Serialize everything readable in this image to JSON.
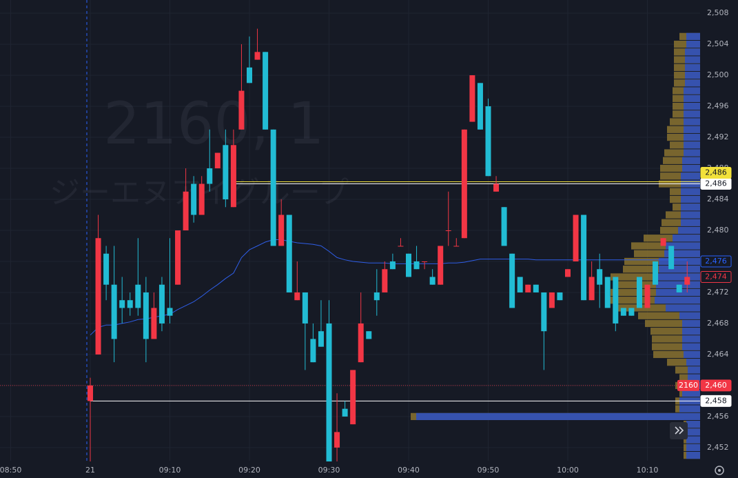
{
  "chart_data": {
    "type": "candlestick",
    "watermark": {
      "title": "2160, 1",
      "subtitle": "ジーエヌアイグループ"
    },
    "x": [
      "09:00",
      "09:01",
      "09:02",
      "09:03",
      "09:04",
      "09:05",
      "09:06",
      "09:07",
      "09:08",
      "09:09",
      "09:10",
      "09:11",
      "09:12",
      "09:13",
      "09:14",
      "09:15",
      "09:16",
      "09:17",
      "09:18",
      "09:19",
      "09:20",
      "09:21",
      "09:22",
      "09:23",
      "09:24",
      "09:25",
      "09:26",
      "09:27",
      "09:28",
      "09:29",
      "09:30",
      "09:31",
      "09:32",
      "09:33",
      "09:34",
      "09:35",
      "09:36",
      "09:37",
      "09:38",
      "09:39",
      "09:40",
      "09:41",
      "09:42",
      "09:43",
      "09:44",
      "09:45",
      "09:46",
      "09:47",
      "09:48",
      "09:49",
      "09:50",
      "09:51",
      "09:52",
      "09:53",
      "09:54",
      "09:55",
      "09:56",
      "09:57",
      "09:58",
      "09:59",
      "10:00",
      "10:01",
      "10:02",
      "10:03",
      "10:04",
      "10:05",
      "10:06",
      "10:07",
      "10:08",
      "10:09",
      "10:10",
      "10:11",
      "10:12",
      "10:13",
      "10:14",
      "10:15"
    ],
    "open": [
      2458,
      2464,
      2477,
      2473,
      2471,
      2471,
      2473,
      2472,
      2466,
      2473,
      2470,
      2473,
      2480,
      2486,
      2482,
      2488,
      2488,
      2491,
      2483,
      2493,
      2501,
      2502,
      2503,
      2493,
      2478,
      2482,
      2471,
      2472,
      2466,
      2467,
      2468,
      2452,
      2457,
      2455,
      2463,
      2467,
      2472,
      2472,
      2476,
      2478,
      2477,
      2476,
      2476,
      2474,
      2473,
      2480,
      2478,
      2479,
      2494,
      2499,
      2496,
      2485,
      2483,
      2477,
      2474,
      2472,
      2473,
      2472,
      2470,
      2472,
      2474,
      2476,
      2482,
      2471,
      2475,
      2474,
      2474,
      2470,
      2470,
      2474,
      2470,
      2476,
      2478,
      2478,
      2473,
      2473
    ],
    "high": [
      2461,
      2482,
      2478,
      2478,
      2474,
      2472,
      2479,
      2474,
      2472,
      2474,
      2479,
      2480,
      2488,
      2487,
      2487,
      2493,
      2490,
      2493,
      2493,
      2504,
      2505,
      2506,
      2503,
      2493,
      2484,
      2482,
      2476,
      2472,
      2468,
      2471,
      2471,
      2459,
      2458,
      2462,
      2472,
      2467,
      2475,
      2476,
      2477,
      2479,
      2477,
      2478,
      2476,
      2475,
      2478,
      2485,
      2479,
      2493,
      2500,
      2499,
      2497,
      2487,
      2483,
      2477,
      2474,
      2473,
      2473,
      2472,
      2472,
      2472,
      2475,
      2482,
      2482,
      2476,
      2477,
      2474,
      2474,
      2470,
      2470,
      2474,
      2473,
      2476,
      2479,
      2478,
      2473,
      2476
    ],
    "low": [
      2450,
      2464,
      2471,
      2463,
      2468,
      2469,
      2469,
      2463,
      2466,
      2467,
      2468,
      2473,
      2480,
      2481,
      2482,
      2485,
      2488,
      2483,
      2483,
      2493,
      2499,
      2502,
      2493,
      2478,
      2478,
      2472,
      2471,
      2462,
      2463,
      2465,
      2450,
      2450,
      2456,
      2455,
      2463,
      2466,
      2469,
      2472,
      2475,
      2478,
      2474,
      2475,
      2475,
      2473,
      2473,
      2478,
      2478,
      2479,
      2494,
      2493,
      2487,
      2485,
      2478,
      2470,
      2472,
      2472,
      2472,
      2462,
      2470,
      2471,
      2474,
      2476,
      2471,
      2471,
      2470,
      2470,
      2467,
      2469,
      2469,
      2470,
      2470,
      2473,
      2478,
      2475,
      2472,
      2472
    ],
    "close": [
      2460,
      2479,
      2473,
      2466,
      2470,
      2470,
      2470,
      2466,
      2470,
      2468,
      2469,
      2480,
      2485,
      2482,
      2486,
      2486,
      2490,
      2484,
      2491,
      2498,
      2499,
      2503,
      2493,
      2478,
      2482,
      2472,
      2472,
      2468,
      2463,
      2465,
      2450,
      2454,
      2456,
      2462,
      2468,
      2466,
      2471,
      2475,
      2475,
      2478,
      2474,
      2475,
      2476,
      2473,
      2478,
      2480,
      2478,
      2493,
      2500,
      2493,
      2487,
      2486,
      2478,
      2470,
      2472,
      2473,
      2472,
      2467,
      2472,
      2471,
      2475,
      2482,
      2471,
      2474,
      2473,
      2470,
      2468,
      2469,
      2469,
      2470,
      2473,
      2473,
      2479,
      2475,
      2472,
      2474
    ],
    "up_color": "#f23645",
    "down_color": "#22bcd4",
    "vwap": {
      "color": "#2f5ee8",
      "values": [
        2466.5,
        2467.5,
        2467.8,
        2467.8,
        2468,
        2468.2,
        2468.5,
        2468.6,
        2468.8,
        2469,
        2469.2,
        2469.8,
        2470.3,
        2470.8,
        2471.5,
        2472.3,
        2473,
        2473.8,
        2474.5,
        2476.5,
        2477.5,
        2478,
        2478.5,
        2478.8,
        2478.8,
        2478.6,
        2478.4,
        2478.3,
        2478.2,
        2478,
        2477.3,
        2476.5,
        2476.2,
        2476,
        2475.9,
        2475.8,
        2475.8,
        2475.8,
        2475.7,
        2475.7,
        2475.7,
        2475.7,
        2475.7,
        2475.7,
        2475.7,
        2475.8,
        2475.8,
        2475.9,
        2476.1,
        2476.3,
        2476.3,
        2476.3,
        2476.3,
        2476.3,
        2476.3,
        2476.3,
        2476.2,
        2476.2,
        2476.2,
        2476.2,
        2476.2,
        2476.2,
        2476.2,
        2476.2,
        2476.2,
        2476.2,
        2476.2,
        2476.2,
        2476.2,
        2476.2,
        2476.2,
        2476.2,
        2476.2,
        2476.2,
        2476.2,
        2476.2
      ]
    },
    "profile": {
      "outer_color": "#8a7330",
      "inner_color": "#2a4fc4",
      "levels": [
        2505,
        2504,
        2503,
        2502,
        2501,
        2500,
        2499,
        2498,
        2497,
        2496,
        2495,
        2494,
        2493,
        2492,
        2491,
        2490,
        2489,
        2488,
        2487,
        2486,
        2485,
        2484,
        2483,
        2482,
        2481,
        2480,
        2479,
        2478,
        2477,
        2476,
        2475,
        2474,
        2473,
        2472,
        2471,
        2470,
        2469,
        2468,
        2467,
        2466,
        2465,
        2464,
        2463,
        2462,
        2461,
        2460,
        2459,
        2458,
        2457,
        2456,
        2455,
        2454,
        2453,
        2452,
        2451
      ],
      "total": [
        30,
        38,
        38,
        38,
        38,
        38,
        38,
        40,
        40,
        40,
        40,
        44,
        48,
        48,
        44,
        52,
        54,
        58,
        58,
        60,
        44,
        44,
        40,
        50,
        56,
        58,
        82,
        100,
        96,
        110,
        112,
        130,
        126,
        130,
        132,
        126,
        90,
        80,
        72,
        70,
        70,
        68,
        48,
        36,
        30,
        36,
        30,
        36,
        36,
        420,
        24,
        24,
        24,
        24,
        24
      ],
      "inner": [
        20,
        20,
        22,
        22,
        22,
        22,
        22,
        24,
        24,
        24,
        24,
        24,
        24,
        24,
        24,
        24,
        26,
        26,
        28,
        28,
        28,
        28,
        28,
        28,
        28,
        32,
        40,
        50,
        52,
        60,
        60,
        66,
        64,
        64,
        66,
        50,
        30,
        26,
        26,
        26,
        26,
        24,
        20,
        18,
        18,
        30,
        26,
        30,
        30,
        412,
        20,
        20,
        20,
        20,
        20
      ]
    },
    "price_lines": [
      {
        "value": 2486,
        "label": "2,486",
        "color": "#f2e13a",
        "from": "09:18"
      },
      {
        "value": 2486,
        "label": "2,486",
        "color": "#ffffff",
        "from": "09:18"
      },
      {
        "value": 2458,
        "label": "2,458",
        "color": "#ffffff",
        "from": "09:00"
      }
    ],
    "badges": [
      {
        "value": 2476,
        "label": "2,476",
        "color": "#2962ff",
        "style": "outline"
      },
      {
        "value": 2474,
        "label": "2,474",
        "color": "#f23645",
        "style": "outline"
      },
      {
        "value": 2460,
        "label": "2,460",
        "color": "#f23645",
        "style": "fill",
        "tag": "2160"
      }
    ],
    "ylim": [
      2450.3,
      2509.7
    ],
    "yticks": [
      {
        "value": 2452,
        "label": "2,452"
      },
      {
        "value": 2456,
        "label": "2,456"
      },
      {
        "value": 2460,
        "label": "2,460"
      },
      {
        "value": 2464,
        "label": "2,464"
      },
      {
        "value": 2468,
        "label": "2,468"
      },
      {
        "value": 2472,
        "label": "2,472"
      },
      {
        "value": 2476,
        "label": "2,476"
      },
      {
        "value": 2480,
        "label": "2,480"
      },
      {
        "value": 2484,
        "label": "2,484"
      },
      {
        "value": 2488,
        "label": "2,488"
      },
      {
        "value": 2492,
        "label": "2,492"
      },
      {
        "value": 2496,
        "label": "2,496"
      },
      {
        "value": 2500,
        "label": "2,500"
      },
      {
        "value": 2504,
        "label": "2,504"
      },
      {
        "value": 2508,
        "label": "2,508"
      }
    ],
    "xticks": [
      {
        "value": "08:50",
        "label": "08:50"
      },
      {
        "value": "09:00",
        "label": "21"
      },
      "09:10",
      "09:20",
      "09:30",
      "09:40",
      "09:50",
      "10:00",
      "10:10"
    ],
    "grid": true
  }
}
